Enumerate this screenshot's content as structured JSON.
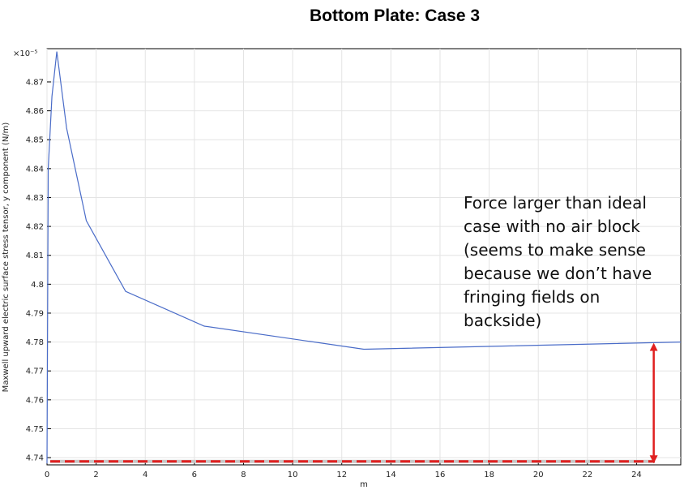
{
  "chart_data": {
    "type": "line",
    "title": "Bottom Plate: Case 3",
    "xlabel": "m",
    "ylabel": "Maxwell upward electric surface stress tensor, y component (N/m)",
    "y_multiplier_label": "×10⁻⁵",
    "xlim": [
      0,
      25.8
    ],
    "ylim": [
      4.7375,
      4.8815
    ],
    "x_ticks": [
      0,
      2,
      4,
      6,
      8,
      10,
      12,
      14,
      16,
      18,
      20,
      22,
      24
    ],
    "y_ticks": [
      4.74,
      4.75,
      4.76,
      4.77,
      4.78,
      4.79,
      4.8,
      4.81,
      4.82,
      4.83,
      4.84,
      4.85,
      4.86,
      4.87
    ],
    "y_tick_labels": [
      "4.74",
      "4.75",
      "4.76",
      "4.77",
      "4.78",
      "4.79",
      "4.8",
      "4.81",
      "4.82",
      "4.83",
      "4.84",
      "4.85",
      "4.86",
      "4.87"
    ],
    "grid": true,
    "series": [
      {
        "color": "#4a6cc8",
        "x": [
          0.0,
          0.05,
          0.2,
          0.4,
          0.8,
          1.6,
          3.2,
          6.4,
          12.9,
          25.8
        ],
        "y": [
          4.738,
          4.84,
          4.865,
          4.8805,
          4.854,
          4.822,
          4.7975,
          4.7855,
          4.7775,
          4.78
        ]
      }
    ],
    "reference_line": {
      "y": 4.7387,
      "color": "#e02020",
      "style": "dashed"
    },
    "arrow": {
      "x": 24.7,
      "y_from": 4.7394,
      "y_to": 4.7783,
      "color": "#e02020"
    },
    "annotation": "Force larger than ideal case with no air block (seems to make sense because we don’t have fringing fields on backside)"
  }
}
